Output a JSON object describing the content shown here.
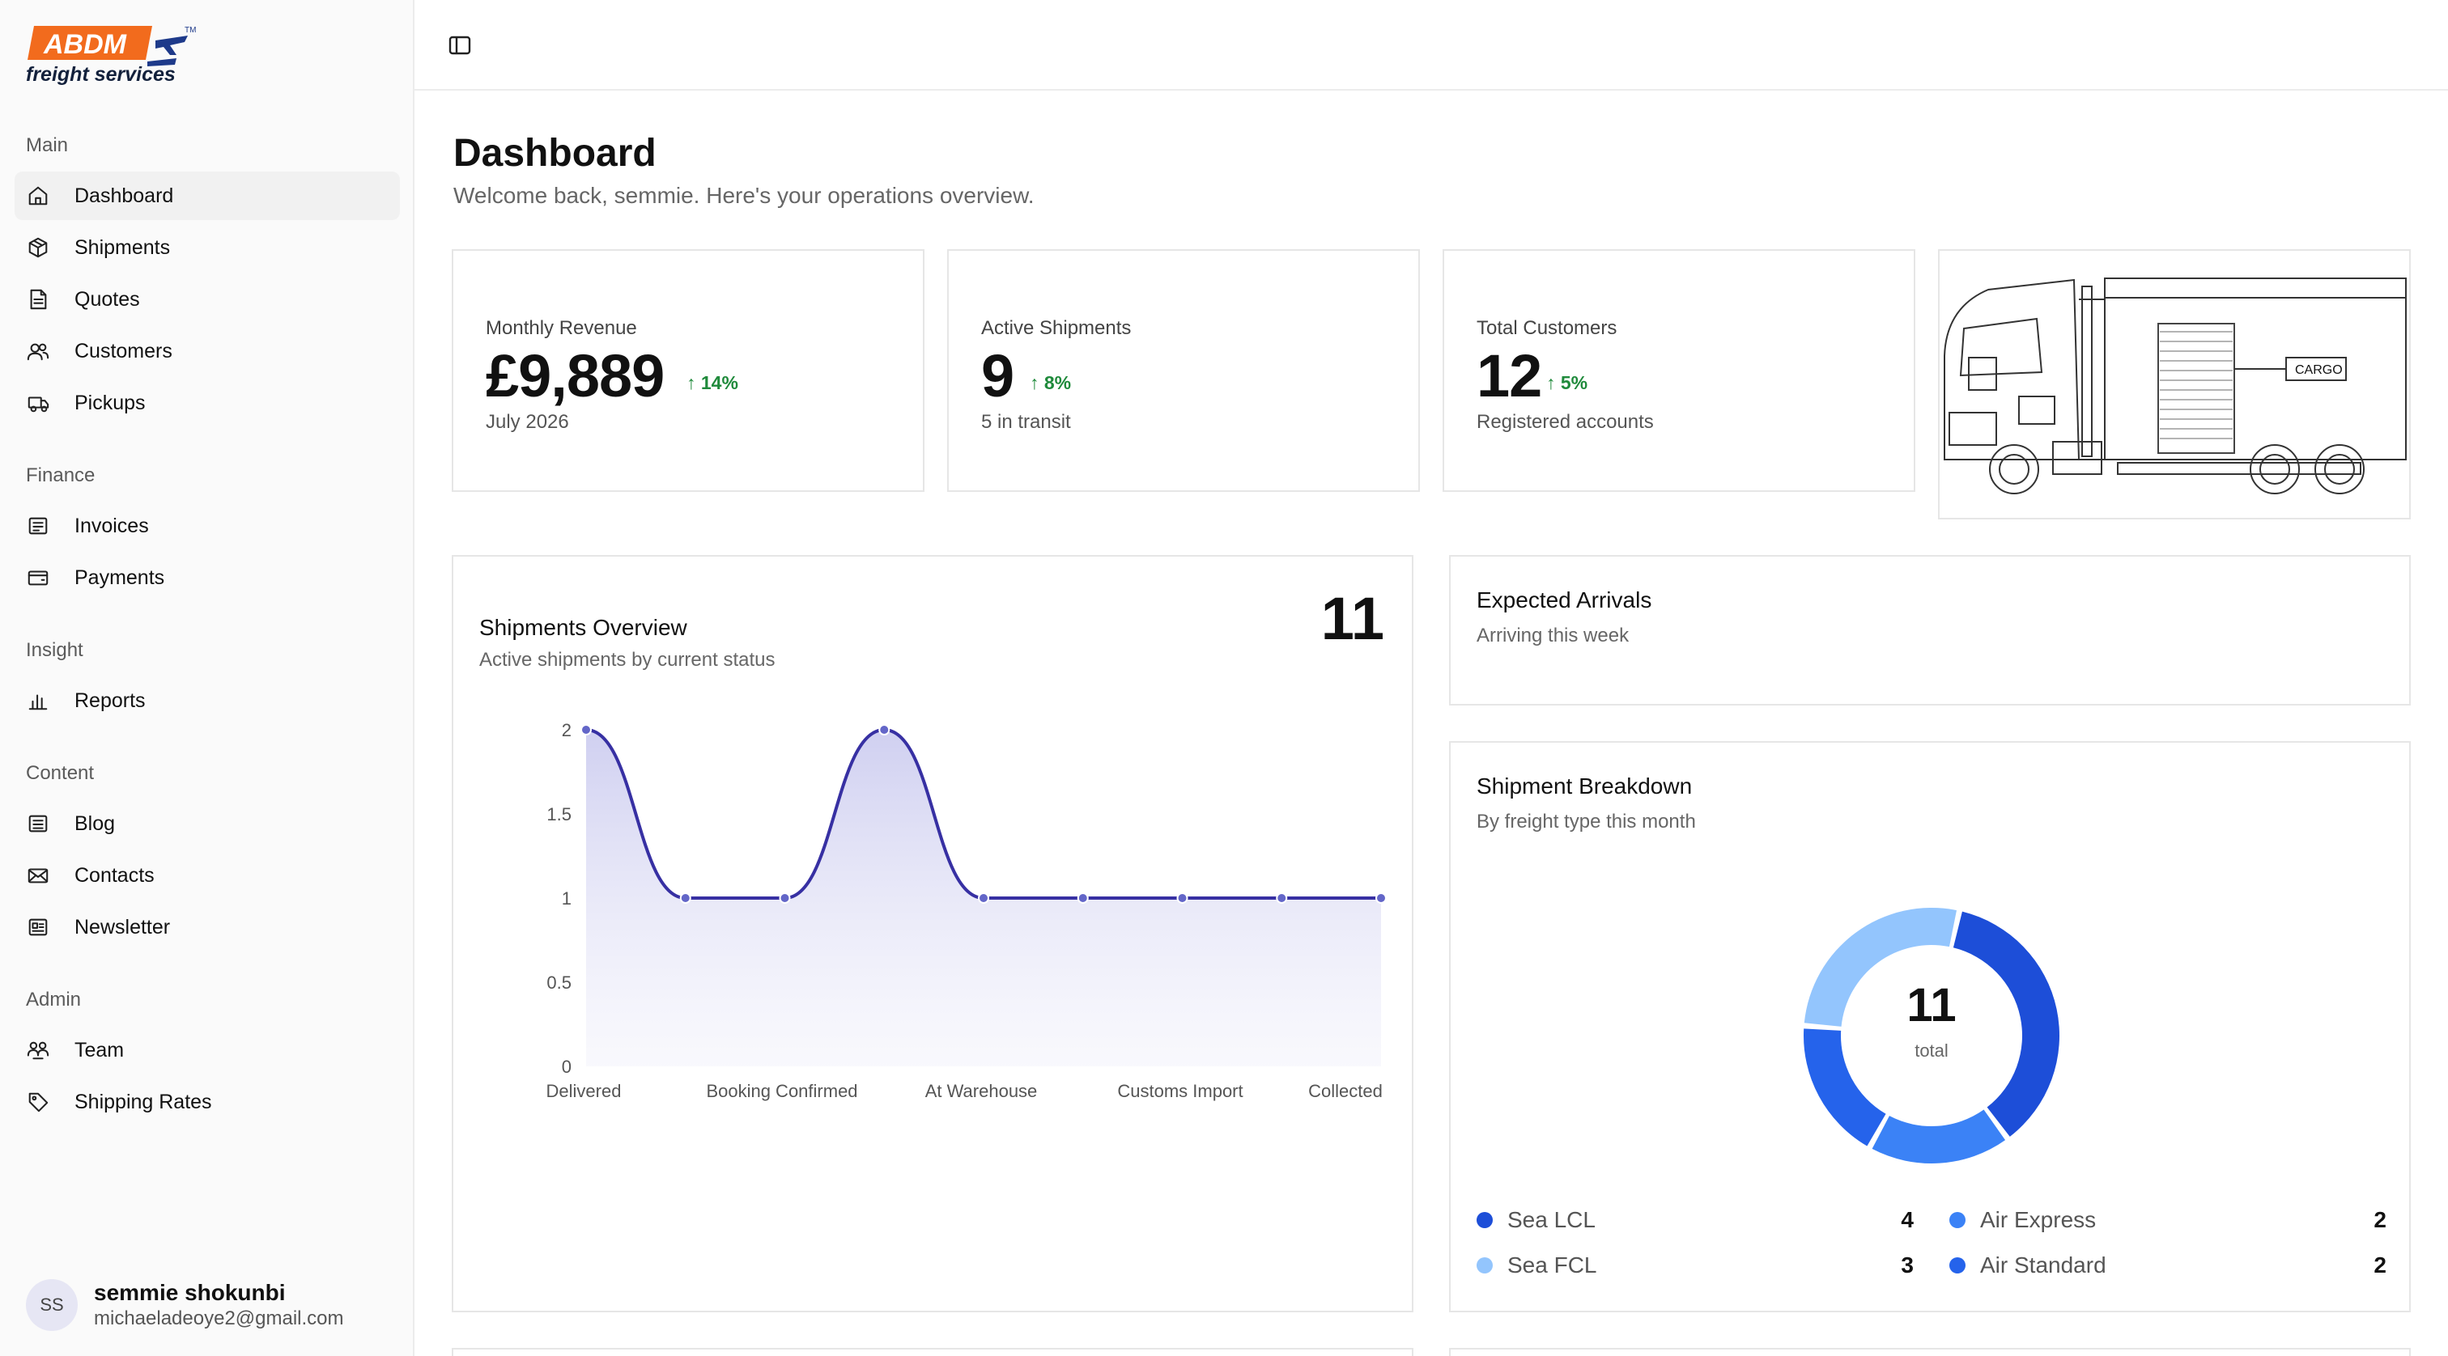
{
  "brand": {
    "logo_text": "ABDM",
    "logo_sub": "freight services",
    "trademark": "TM"
  },
  "sidebar": {
    "sections": [
      {
        "title": "Main",
        "items": [
          {
            "label": "Dashboard",
            "icon": "home-icon"
          },
          {
            "label": "Shipments",
            "icon": "package-icon"
          },
          {
            "label": "Quotes",
            "icon": "file-text-icon"
          },
          {
            "label": "Customers",
            "icon": "users-icon"
          },
          {
            "label": "Pickups",
            "icon": "truck-icon"
          }
        ]
      },
      {
        "title": "Finance",
        "items": [
          {
            "label": "Invoices",
            "icon": "receipt-icon"
          },
          {
            "label": "Payments",
            "icon": "wallet-icon"
          }
        ]
      },
      {
        "title": "Insight",
        "items": [
          {
            "label": "Reports",
            "icon": "bar-chart-icon"
          }
        ]
      },
      {
        "title": "Content",
        "items": [
          {
            "label": "Blog",
            "icon": "newspaper-icon"
          },
          {
            "label": "Contacts",
            "icon": "mail-icon"
          },
          {
            "label": "Newsletter",
            "icon": "newsletter-icon"
          }
        ]
      },
      {
        "title": "Admin",
        "items": [
          {
            "label": "Team",
            "icon": "team-icon"
          },
          {
            "label": "Shipping Rates",
            "icon": "tag-icon"
          }
        ]
      }
    ],
    "active_item": "Dashboard"
  },
  "user": {
    "initials": "SS",
    "name": "semmie shokunbi",
    "email": "michaeladeoye2@gmail.com"
  },
  "header": {
    "title": "Dashboard",
    "subtitle": "Welcome back, semmie. Here's your operations overview."
  },
  "stats": [
    {
      "label": "Monthly Revenue",
      "value": "£9,889",
      "trend": "14%",
      "sub": "July 2026"
    },
    {
      "label": "Active Shipments",
      "value": "9",
      "trend": "8%",
      "sub": "5 in transit"
    },
    {
      "label": "Total Customers",
      "value": "12",
      "trend": "5%",
      "sub": "Registered accounts"
    }
  ],
  "truck_image": {
    "label": "CARGO"
  },
  "shipments_overview": {
    "title": "Shipments Overview",
    "subtitle": "Active shipments by current status",
    "total": "11"
  },
  "expected_arrivals": {
    "title": "Expected Arrivals",
    "subtitle": "Arriving this week"
  },
  "breakdown": {
    "title": "Shipment Breakdown",
    "subtitle": "By freight type this month",
    "total": "11",
    "total_label": "total",
    "legend": [
      {
        "label": "Sea LCL",
        "value": "4",
        "color": "#1d4ed8"
      },
      {
        "label": "Air Express",
        "value": "2",
        "color": "#3b82f6"
      },
      {
        "label": "Sea FCL",
        "value": "3",
        "color": "#93c5fd"
      },
      {
        "label": "Air Standard",
        "value": "2",
        "color": "#2563eb"
      }
    ]
  },
  "chart_data": [
    {
      "type": "area",
      "categories": [
        "Delivered",
        "",
        "Booking Confirmed",
        "",
        "At Warehouse",
        "",
        "Customs Import",
        "",
        "Collected"
      ],
      "x_tick_labels": [
        "Delivered",
        "Booking Confirmed",
        "At Warehouse",
        "Customs Import",
        "Collected"
      ],
      "values": [
        2,
        1,
        1,
        2,
        1,
        1,
        1,
        1,
        1
      ],
      "y_ticks": [
        "0",
        "0.5",
        "1",
        "1.5",
        "2"
      ],
      "ylim": [
        0,
        2
      ],
      "line_color": "#3730a3",
      "fill_color": "#c7c7ee",
      "grid": false
    },
    {
      "type": "pie",
      "categories": [
        "Sea LCL",
        "Air Express",
        "Air Standard",
        "Sea FCL"
      ],
      "values": [
        4,
        2,
        2,
        3
      ],
      "colors": [
        "#1d4ed8",
        "#3b82f6",
        "#2563eb",
        "#93c5fd"
      ],
      "total": 11
    }
  ]
}
